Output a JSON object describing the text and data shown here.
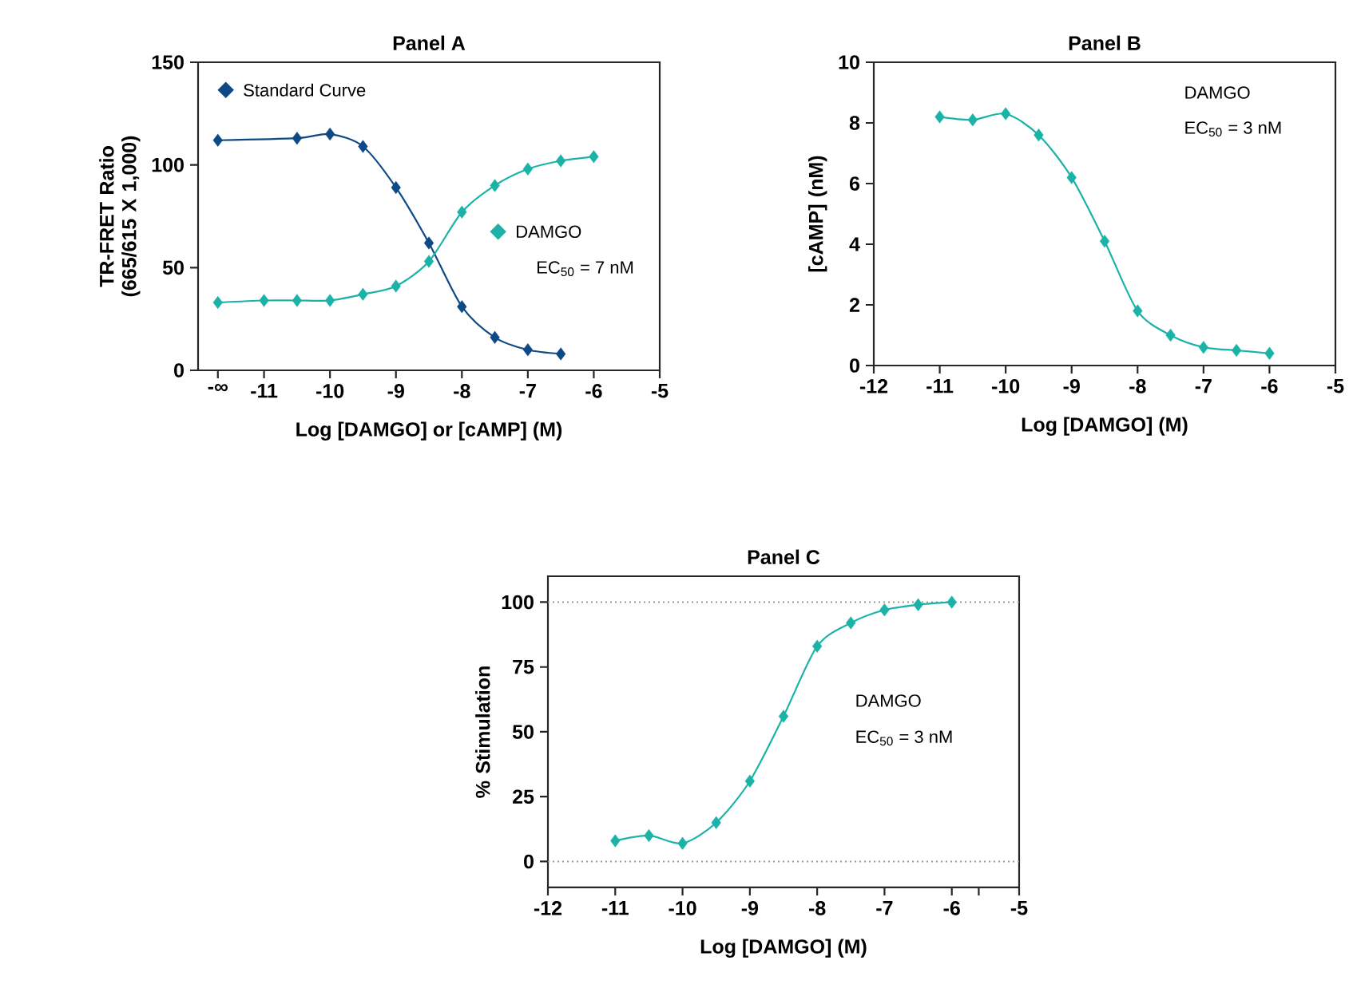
{
  "chart_data": [
    {
      "type": "line",
      "title": "Panel A",
      "xlabel": "Log [DAMGO] or [cAMP] (M)",
      "ylabel": "TR-FRET Ratio (665/615 X 1,000)",
      "xlim": [
        -12,
        -5
      ],
      "ylim": [
        0,
        150
      ],
      "xticks": [
        {
          "value": -11.7,
          "label": "-∞"
        },
        -11,
        -10,
        -9,
        -8,
        -7,
        -6,
        -5
      ],
      "yticks": [
        0,
        50,
        100,
        150
      ],
      "marker": "diamond",
      "legend": "top left",
      "annotations": [
        "EC$_{50}$ = 7 nM"
      ],
      "series": [
        {
          "name": "Standard Curve",
          "color": "#0d4a85",
          "x": [
            -11.7,
            -10.5,
            -10,
            -9.5,
            -9,
            -8.5,
            -8,
            -7.5,
            -7,
            -6.5
          ],
          "values": [
            112,
            113,
            115,
            109,
            89,
            62,
            31,
            16,
            10,
            8
          ]
        },
        {
          "name": "DAMGO",
          "color": "#1bb3a8",
          "x": [
            -11.7,
            -11,
            -10.5,
            -10,
            -9.5,
            -9,
            -8.5,
            -8,
            -7.5,
            -7,
            -6.5,
            -6
          ],
          "values": [
            33,
            34,
            34,
            34,
            37,
            41,
            53,
            77,
            90,
            98,
            102,
            104
          ]
        }
      ]
    },
    {
      "type": "line",
      "title": "Panel B",
      "xlabel": "Log [DAMGO] (M)",
      "ylabel": "[cAMP] (nM)",
      "xlim": [
        -12,
        -5
      ],
      "ylim": [
        0,
        10
      ],
      "xticks": [
        -12,
        -11,
        -10,
        -9,
        -8,
        -7,
        -6,
        -5
      ],
      "yticks": [
        0,
        2,
        4,
        6,
        8,
        10
      ],
      "marker": "diamond",
      "annotations": [
        "DAMGO",
        "EC$_{50}$ = 3 nM"
      ],
      "series": [
        {
          "color": "#1bb3a8",
          "x": [
            -11,
            -10.5,
            -10,
            -9.5,
            -9,
            -8.5,
            -8,
            -7.5,
            -7,
            -6.5,
            -6
          ],
          "values": [
            8.2,
            8.1,
            8.3,
            7.6,
            6.2,
            4.1,
            1.8,
            1.0,
            0.6,
            0.5,
            0.4
          ]
        }
      ]
    },
    {
      "type": "line",
      "title": "Panel C",
      "xlabel": "Log [DAMGO] (M)",
      "ylabel": "% Stimulation",
      "xlim": [
        -12,
        -5
      ],
      "ylim": [
        -10,
        110
      ],
      "xticks": [
        -12,
        -11,
        -10,
        -9,
        -8,
        -7,
        -6,
        {
          "value": -5.6,
          "label": null
        },
        -5
      ],
      "yticks": [
        0,
        25,
        50,
        75,
        100
      ],
      "marker": "diamond",
      "annotations": [
        "DAMGO",
        "EC$_{50}$ = 3 nM"
      ],
      "ref_lines": [
        {
          "axis": "y",
          "value": 0,
          "color": "#9a9a9a",
          "line_style": "dotted"
        },
        {
          "axis": "y",
          "value": 100,
          "color": "#9a9a9a",
          "line_style": "dotted"
        }
      ],
      "series": [
        {
          "color": "#1bb3a8",
          "x": [
            -11,
            -10.5,
            -10,
            -9.5,
            -9,
            -8.5,
            -8,
            -7.5,
            -7,
            -6.5,
            -6
          ],
          "values": [
            8,
            10,
            7,
            15,
            31,
            56,
            83,
            92,
            97,
            99,
            100
          ]
        }
      ]
    }
  ]
}
